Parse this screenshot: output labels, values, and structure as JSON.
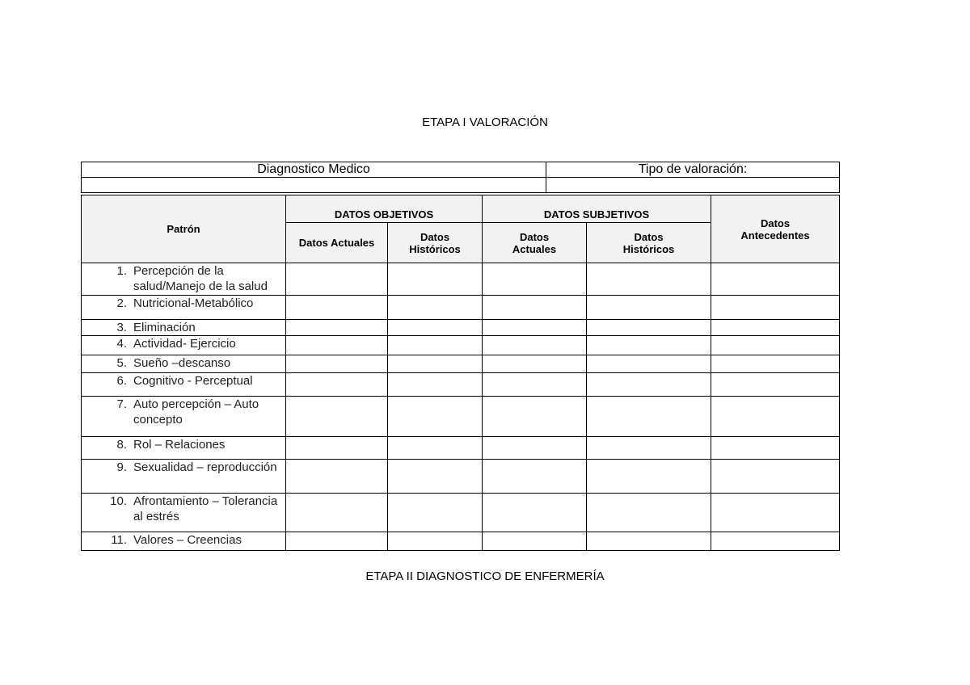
{
  "title": "ETAPA I VALORACIÓN",
  "footer_title": "ETAPA II DIAGNOSTICO DE ENFERMERÍA",
  "top_table": {
    "diagnostico": "Diagnostico  Medico",
    "tipo": "Tipo de valoración:"
  },
  "headers": {
    "patron": "Patrón",
    "objetivos": "DATOS OBJETIVOS",
    "subjetivos": "DATOS SUBJETIVOS",
    "antecedentes": "Datos Antecedentes",
    "obj_actuales": "Datos Actuales",
    "obj_historicos": "Datos Históricos",
    "sub_actuales": "Datos Actuales",
    "sub_historicos": "Datos Históricos"
  },
  "rows": [
    {
      "num": "1.",
      "label": "Percepción  de la salud/Manejo de la salud"
    },
    {
      "num": "2.",
      "label": "Nutricional-Metabólico"
    },
    {
      "num": "3.",
      "label": "Eliminación"
    },
    {
      "num": "4.",
      "label": "Actividad- Ejercicio"
    },
    {
      "num": "5.",
      "label": "Sueño –descanso"
    },
    {
      "num": "6.",
      "label": "Cognitivo -  Perceptual"
    },
    {
      "num": "7.",
      "label": "Auto percepción – Auto concepto"
    },
    {
      "num": "8.",
      "label": "Rol – Relaciones"
    },
    {
      "num": "9.",
      "label": "Sexualidad – reproducción"
    },
    {
      "num": "10.",
      "label": "Afrontamiento – Tolerancia al estrés"
    },
    {
      "num": "11.",
      "label": "Valores – Creencias"
    }
  ]
}
